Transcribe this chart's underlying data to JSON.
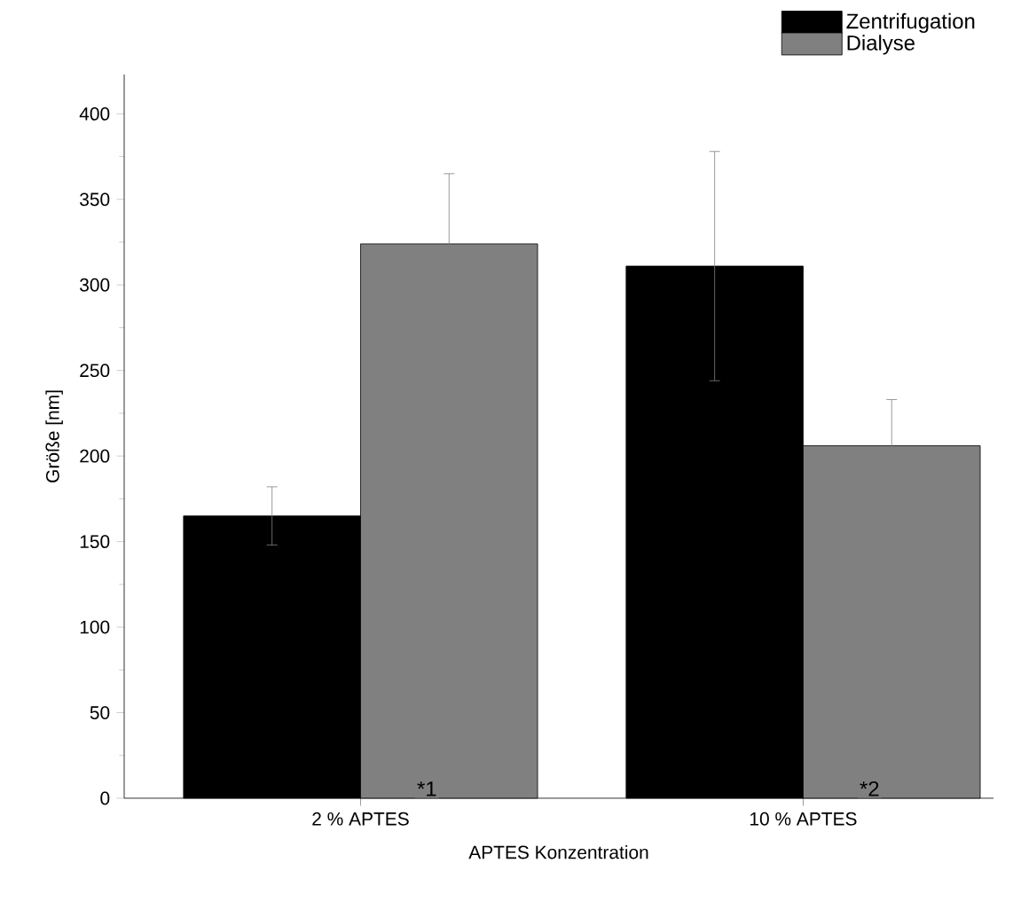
{
  "chart_data": {
    "type": "bar",
    "xlabel": "APTES Konzentration",
    "ylabel": "Größe [nm]",
    "categories": [
      "2 % APTES",
      "10 % APTES"
    ],
    "series": [
      {
        "name": "Zentrifugation",
        "color": "#000000",
        "values": [
          165,
          311
        ],
        "errors": [
          17,
          67
        ]
      },
      {
        "name": "Dialyse",
        "color": "#808080",
        "values": [
          324,
          206
        ],
        "errors": [
          41,
          27
        ]
      }
    ],
    "ylim": [
      0,
      423
    ],
    "yticks": [
      0,
      50,
      100,
      150,
      200,
      250,
      300,
      350,
      400
    ],
    "annotations": [
      "*1",
      "*2"
    ],
    "legend": "top right"
  }
}
